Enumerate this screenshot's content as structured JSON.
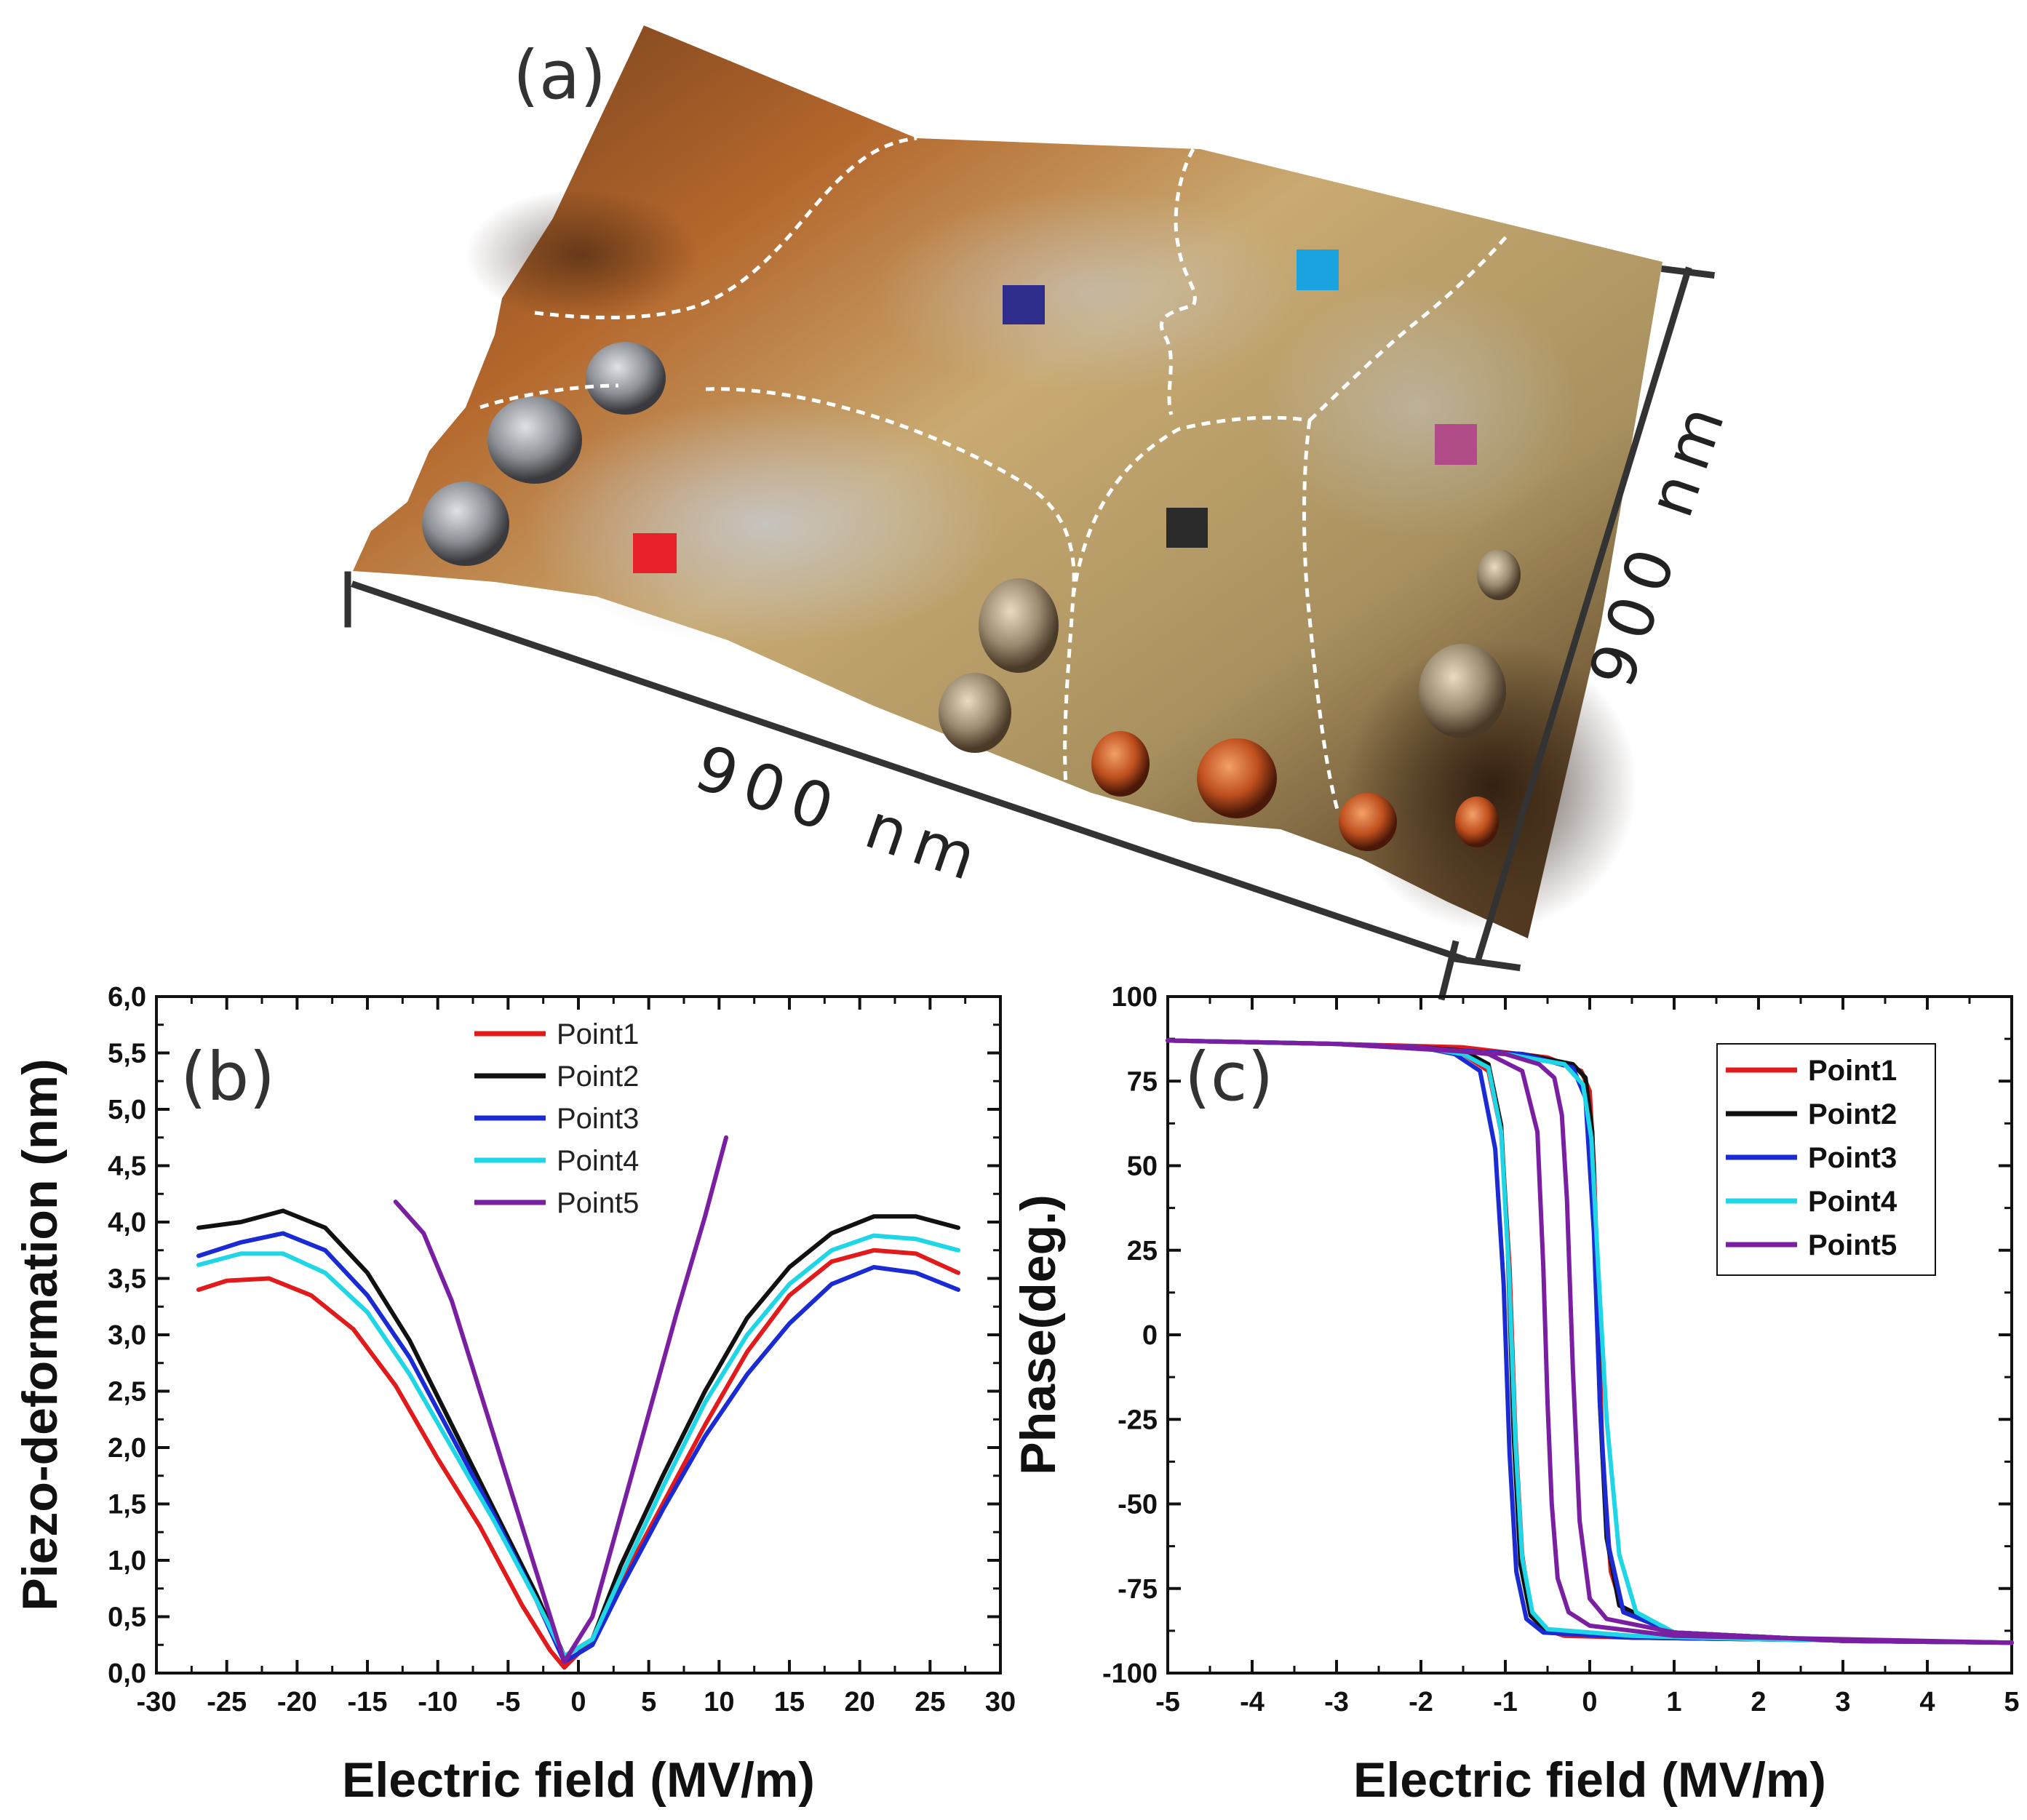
{
  "panel_a": {
    "label": "(a)",
    "scale_bottom": "900 nm",
    "scale_right": "900 nm",
    "markers": [
      {
        "name": "Point1",
        "color": "#e8202a"
      },
      {
        "name": "Point2",
        "color": "#2a2a2a"
      },
      {
        "name": "Point3",
        "color": "#2e2d8c"
      },
      {
        "name": "Point4",
        "color": "#1aa3df"
      },
      {
        "name": "Point5",
        "color": "#b14c88"
      }
    ]
  },
  "chart_data": [
    {
      "id": "b",
      "type": "line",
      "panel_label": "(b)",
      "xlabel": "Electric field (MV/m)",
      "ylabel": "Piezo-deformation (nm)",
      "xlim": [
        -30,
        30
      ],
      "ylim": [
        0,
        6
      ],
      "xticks": [
        "-30",
        "-25",
        "-20",
        "-15",
        "-10",
        "-5",
        "0",
        "5",
        "10",
        "15",
        "20",
        "25",
        "30"
      ],
      "yticks": [
        "0,0",
        "0,5",
        "1,0",
        "1,5",
        "2,0",
        "2,5",
        "3,0",
        "3,5",
        "4,0",
        "4,5",
        "5,0",
        "5,5",
        "6,0"
      ],
      "legend_position": "top-center",
      "series": [
        {
          "name": "Point1",
          "color": "#e11b1b",
          "x": [
            -27,
            -25,
            -22,
            -19,
            -16,
            -13,
            -10,
            -7,
            -4,
            -2,
            -1,
            1,
            3,
            6,
            9,
            12,
            15,
            18,
            21,
            24,
            27
          ],
          "y": [
            3.4,
            3.48,
            3.5,
            3.35,
            3.05,
            2.55,
            1.9,
            1.3,
            0.6,
            0.2,
            0.05,
            0.3,
            0.8,
            1.5,
            2.2,
            2.85,
            3.35,
            3.65,
            3.75,
            3.72,
            3.55
          ]
        },
        {
          "name": "Point2",
          "color": "#111111",
          "x": [
            -27,
            -24,
            -21,
            -18,
            -15,
            -12,
            -9,
            -6,
            -3,
            -1,
            1,
            3,
            6,
            9,
            12,
            15,
            18,
            21,
            24,
            27
          ],
          "y": [
            3.95,
            4.0,
            4.1,
            3.95,
            3.55,
            2.95,
            2.2,
            1.45,
            0.7,
            0.15,
            0.3,
            0.95,
            1.75,
            2.5,
            3.15,
            3.6,
            3.9,
            4.05,
            4.05,
            3.95
          ]
        },
        {
          "name": "Point3",
          "color": "#1a2bd4",
          "x": [
            -27,
            -24,
            -21,
            -18,
            -15,
            -12,
            -9,
            -6,
            -3,
            -1,
            1,
            3,
            6,
            9,
            12,
            15,
            18,
            21,
            24,
            27
          ],
          "y": [
            3.7,
            3.82,
            3.9,
            3.75,
            3.35,
            2.8,
            2.1,
            1.4,
            0.65,
            0.1,
            0.25,
            0.75,
            1.45,
            2.1,
            2.65,
            3.1,
            3.45,
            3.6,
            3.55,
            3.4
          ]
        },
        {
          "name": "Point4",
          "color": "#1fd6e6",
          "x": [
            -27,
            -24,
            -21,
            -18,
            -15,
            -12,
            -9,
            -6,
            -3,
            -1,
            1,
            3,
            6,
            9,
            12,
            15,
            18,
            21,
            24,
            27
          ],
          "y": [
            3.62,
            3.72,
            3.72,
            3.55,
            3.2,
            2.65,
            2.0,
            1.35,
            0.65,
            0.15,
            0.3,
            0.85,
            1.65,
            2.4,
            3.0,
            3.45,
            3.75,
            3.88,
            3.85,
            3.75
          ]
        },
        {
          "name": "Point5",
          "color": "#7a1fa2",
          "x": [
            -13,
            -11,
            -9,
            -7,
            -5,
            -3,
            -1,
            1,
            3,
            5,
            7,
            9,
            10.5
          ],
          "y": [
            4.18,
            3.9,
            3.3,
            2.5,
            1.7,
            0.9,
            0.1,
            0.5,
            1.4,
            2.3,
            3.2,
            4.05,
            4.75
          ]
        }
      ]
    },
    {
      "id": "c",
      "type": "line",
      "panel_label": "(c)",
      "xlabel": "Electric field (MV/m)",
      "ylabel": "Phase(deg.)",
      "xlim": [
        -5,
        5
      ],
      "ylim": [
        -100,
        100
      ],
      "xticks": [
        "-5",
        "-4",
        "-3",
        "-2",
        "-1",
        "0",
        "1",
        "2",
        "3",
        "4",
        "5"
      ],
      "yticks": [
        "-100",
        "-75",
        "-50",
        "-25",
        "0",
        "25",
        "50",
        "75",
        "100"
      ],
      "legend_position": "top-right",
      "series": [
        {
          "name": "Point1",
          "color": "#e11b1b",
          "x": [
            -5,
            -3,
            -2,
            -1.5,
            -1.2,
            -1.05,
            -0.95,
            -0.88,
            -0.8,
            -0.7,
            -0.55,
            -0.3,
            0.5,
            2,
            5,
            3,
            1,
            0.4,
            0.25,
            0.15,
            0.1,
            0.05,
            0,
            -0.1,
            -0.5,
            -1.5,
            -3,
            -5
          ],
          "y": [
            87,
            86,
            85,
            83,
            78,
            60,
            20,
            -30,
            -65,
            -82,
            -87,
            -89,
            -89.5,
            -90,
            -91,
            -90.5,
            -88,
            -82,
            -70,
            -35,
            10,
            50,
            72,
            78,
            82,
            85,
            86,
            87
          ]
        },
        {
          "name": "Point2",
          "color": "#111111",
          "x": [
            -5,
            -3,
            -2,
            -1.5,
            -1.2,
            -1.05,
            -0.97,
            -0.9,
            -0.82,
            -0.7,
            -0.5,
            0.5,
            2,
            5,
            3,
            1,
            0.35,
            0.2,
            0.12,
            0.08,
            0.03,
            -0.05,
            -0.2,
            -0.8,
            -3,
            -5
          ],
          "y": [
            87,
            86,
            85,
            84,
            80,
            62,
            25,
            -30,
            -68,
            -83,
            -88,
            -89.5,
            -90,
            -91,
            -90.5,
            -88,
            -80,
            -60,
            -20,
            20,
            60,
            76,
            80,
            83,
            86,
            87
          ]
        },
        {
          "name": "Point3",
          "color": "#1a2bd4",
          "x": [
            -5,
            -3,
            -2,
            -1.6,
            -1.3,
            -1.12,
            -1.02,
            -0.95,
            -0.87,
            -0.75,
            -0.55,
            0.5,
            2,
            5,
            3,
            1,
            0.4,
            0.22,
            0.12,
            0.05,
            -0.05,
            -0.2,
            -0.8,
            -3,
            -5
          ],
          "y": [
            87,
            86,
            85,
            83,
            78,
            55,
            15,
            -35,
            -70,
            -84,
            -88,
            -89.5,
            -90,
            -91,
            -90.5,
            -88,
            -82,
            -62,
            -20,
            30,
            70,
            79,
            83,
            86,
            87
          ]
        },
        {
          "name": "Point4",
          "color": "#1fd6e6",
          "x": [
            -5,
            -3,
            -2,
            -1.5,
            -1.2,
            -1.05,
            -0.96,
            -0.88,
            -0.8,
            -0.68,
            -0.5,
            0.5,
            2,
            5,
            3,
            1,
            0.55,
            0.35,
            0.2,
            0.1,
            0.02,
            -0.08,
            -0.3,
            -1,
            -3,
            -5
          ],
          "y": [
            87,
            86,
            85,
            83,
            79,
            60,
            20,
            -32,
            -66,
            -82,
            -87,
            -89,
            -90,
            -91,
            -90.5,
            -88,
            -82,
            -65,
            -25,
            20,
            58,
            74,
            80,
            83,
            86,
            87
          ]
        },
        {
          "name": "Point5",
          "color": "#7a1fa2",
          "x": [
            -5,
            -3,
            -2,
            -1.2,
            -0.8,
            -0.62,
            -0.55,
            -0.5,
            -0.45,
            -0.38,
            -0.25,
            0,
            1,
            3,
            5,
            3,
            1,
            0.2,
            0,
            -0.12,
            -0.2,
            -0.27,
            -0.33,
            -0.42,
            -0.6,
            -1,
            -3,
            -5
          ],
          "y": [
            87,
            86,
            85,
            83,
            78,
            60,
            20,
            -20,
            -50,
            -72,
            -82,
            -86,
            -89,
            -90,
            -91,
            -90.5,
            -88,
            -84,
            -78,
            -55,
            -10,
            40,
            65,
            76,
            80,
            83,
            86,
            87
          ]
        }
      ]
    }
  ]
}
